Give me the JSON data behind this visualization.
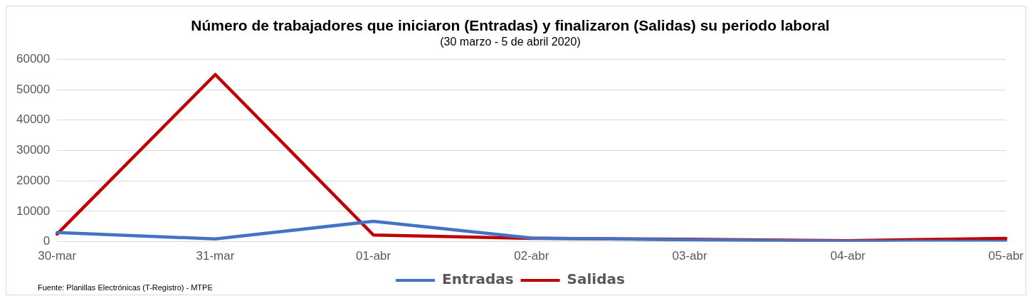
{
  "chart_data": {
    "type": "line",
    "title": "Número de trabajadores que iniciaron (Entradas) y finalizaron (Salidas) su periodo laboral",
    "subtitle": "(30 marzo - 5 de abril 2020)",
    "categories": [
      "30-mar",
      "31-mar",
      "01-abr",
      "02-abr",
      "03-abr",
      "04-abr",
      "05-abr"
    ],
    "series": [
      {
        "name": "Entradas",
        "color": "#4472c4",
        "values": [
          3000,
          900,
          6700,
          1200,
          600,
          200,
          100
        ]
      },
      {
        "name": "Salidas",
        "color": "#c00000",
        "values": [
          2500,
          55000,
          2200,
          1100,
          800,
          300,
          1100
        ]
      }
    ],
    "ylim": [
      0,
      60000
    ],
    "yticks": [
      0,
      10000,
      20000,
      30000,
      40000,
      50000,
      60000
    ],
    "grid": "y",
    "legend": "bottom",
    "marker": "none",
    "line_style": "solid",
    "annotations": [
      "Fuente: Planillas Electrónicas (T-Registro) - MTPE"
    ]
  }
}
